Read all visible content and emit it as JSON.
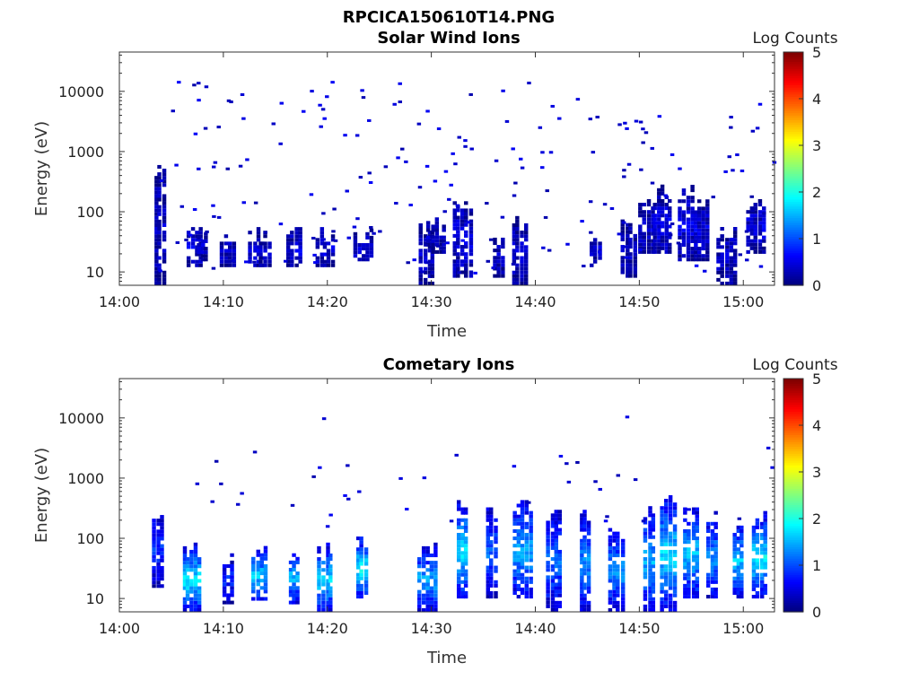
{
  "figure_title": "RPCICA150610T14.PNG",
  "colormap": "jet",
  "chart_data": [
    {
      "type": "heatmap",
      "title": "Solar Wind Ions",
      "xlabel": "Time",
      "ylabel": "Energy (eV)",
      "yscale": "log",
      "ylim": [
        6,
        45000
      ],
      "xlim_minutes": [
        0,
        63
      ],
      "x_ticks": [
        {
          "label": "14:00",
          "value": 0
        },
        {
          "label": "14:10",
          "value": 10
        },
        {
          "label": "14:20",
          "value": 20
        },
        {
          "label": "14:30",
          "value": 30
        },
        {
          "label": "14:40",
          "value": 40
        },
        {
          "label": "14:50",
          "value": 50
        },
        {
          "label": "15:00",
          "value": 60
        }
      ],
      "y_ticks": [
        {
          "label": "10",
          "value": 10
        },
        {
          "label": "100",
          "value": 100
        },
        {
          "label": "1000",
          "value": 1000
        },
        {
          "label": "10000",
          "value": 10000
        }
      ],
      "colorbar": {
        "label": "Log Counts",
        "min": 0,
        "max": 5,
        "ticks": [
          "0",
          "1",
          "2",
          "3",
          "4",
          "5"
        ]
      },
      "bursts": [
        {
          "t": 3.9,
          "lo": 6,
          "hi": 400,
          "c": 0.3
        },
        {
          "t": 7.2,
          "lo": 12,
          "hi": 45,
          "c": 0.4
        },
        {
          "t": 8.0,
          "lo": 15,
          "hi": 40,
          "c": 0.3
        },
        {
          "t": 10.4,
          "lo": 12,
          "hi": 35,
          "c": 0.3
        },
        {
          "t": 13.2,
          "lo": 12,
          "hi": 40,
          "c": 0.4
        },
        {
          "t": 14.0,
          "lo": 12,
          "hi": 38,
          "c": 0.3
        },
        {
          "t": 16.8,
          "lo": 12,
          "hi": 40,
          "c": 0.4
        },
        {
          "t": 19.8,
          "lo": 12,
          "hi": 40,
          "c": 0.4
        },
        {
          "t": 23.5,
          "lo": 15,
          "hi": 38,
          "c": 0.4
        },
        {
          "t": 29.6,
          "lo": 6,
          "hi": 50,
          "c": 0.3
        },
        {
          "t": 30.5,
          "lo": 20,
          "hi": 55,
          "c": 0.3
        },
        {
          "t": 33.0,
          "lo": 8,
          "hi": 130,
          "c": 0.4
        },
        {
          "t": 36.5,
          "lo": 8,
          "hi": 30,
          "c": 0.3
        },
        {
          "t": 38.5,
          "lo": 6,
          "hi": 60,
          "c": 0.3
        },
        {
          "t": 45.8,
          "lo": 12,
          "hi": 40,
          "c": 0.3
        },
        {
          "t": 49.0,
          "lo": 8,
          "hi": 60,
          "c": 0.3
        },
        {
          "t": 50.7,
          "lo": 20,
          "hi": 120,
          "c": 0.3
        },
        {
          "t": 52.2,
          "lo": 20,
          "hi": 200,
          "c": 0.4
        },
        {
          "t": 54.5,
          "lo": 15,
          "hi": 200,
          "c": 0.4
        },
        {
          "t": 56.0,
          "lo": 15,
          "hi": 140,
          "c": 0.4
        },
        {
          "t": 58.4,
          "lo": 6,
          "hi": 40,
          "c": 0.3
        },
        {
          "t": 61.2,
          "lo": 20,
          "hi": 130,
          "c": 0.4
        }
      ],
      "scatter_density": 200,
      "scatter_range": [
        10,
        15000
      ]
    },
    {
      "type": "heatmap",
      "title": "Cometary Ions",
      "xlabel": "Time",
      "ylabel": "Energy (eV)",
      "yscale": "log",
      "ylim": [
        6,
        45000
      ],
      "xlim_minutes": [
        0,
        63
      ],
      "x_ticks": [
        {
          "label": "14:00",
          "value": 0
        },
        {
          "label": "14:10",
          "value": 10
        },
        {
          "label": "14:20",
          "value": 20
        },
        {
          "label": "14:30",
          "value": 30
        },
        {
          "label": "14:40",
          "value": 40
        },
        {
          "label": "14:50",
          "value": 50
        },
        {
          "label": "15:00",
          "value": 60
        }
      ],
      "y_ticks": [
        {
          "label": "10",
          "value": 10
        },
        {
          "label": "100",
          "value": 100
        },
        {
          "label": "1000",
          "value": 1000
        },
        {
          "label": "10000",
          "value": 10000
        }
      ],
      "colorbar": {
        "label": "Log Counts",
        "min": 0,
        "max": 5,
        "ticks": [
          "0",
          "1",
          "2",
          "3",
          "4",
          "5"
        ]
      },
      "bursts": [
        {
          "t": 3.7,
          "lo": 15,
          "hi": 250,
          "c": 0.8
        },
        {
          "t": 7.0,
          "lo": 6,
          "hi": 60,
          "c": 1.6
        },
        {
          "t": 10.5,
          "lo": 8,
          "hi": 45,
          "c": 0.7
        },
        {
          "t": 13.5,
          "lo": 8,
          "hi": 60,
          "c": 1.4
        },
        {
          "t": 16.8,
          "lo": 8,
          "hi": 60,
          "c": 1.4
        },
        {
          "t": 19.8,
          "lo": 6,
          "hi": 60,
          "c": 1.5
        },
        {
          "t": 23.3,
          "lo": 10,
          "hi": 80,
          "c": 1.7
        },
        {
          "t": 29.6,
          "lo": 6,
          "hi": 60,
          "c": 1.3
        },
        {
          "t": 33.0,
          "lo": 10,
          "hi": 300,
          "c": 1.6
        },
        {
          "t": 35.8,
          "lo": 10,
          "hi": 250,
          "c": 1.0
        },
        {
          "t": 38.8,
          "lo": 10,
          "hi": 330,
          "c": 1.3
        },
        {
          "t": 41.8,
          "lo": 6,
          "hi": 250,
          "c": 1.0
        },
        {
          "t": 44.8,
          "lo": 6,
          "hi": 200,
          "c": 1.2
        },
        {
          "t": 47.8,
          "lo": 6,
          "hi": 120,
          "c": 1.2
        },
        {
          "t": 51.0,
          "lo": 6,
          "hi": 250,
          "c": 1.3
        },
        {
          "t": 52.8,
          "lo": 6,
          "hi": 420,
          "c": 1.5
        },
        {
          "t": 55.0,
          "lo": 10,
          "hi": 250,
          "c": 1.4
        },
        {
          "t": 57.0,
          "lo": 10,
          "hi": 200,
          "c": 1.2
        },
        {
          "t": 59.5,
          "lo": 10,
          "hi": 160,
          "c": 1.4
        },
        {
          "t": 61.6,
          "lo": 10,
          "hi": 200,
          "c": 1.6
        }
      ],
      "scatter_density": 40,
      "scatter_range": [
        150,
        12000
      ]
    }
  ]
}
